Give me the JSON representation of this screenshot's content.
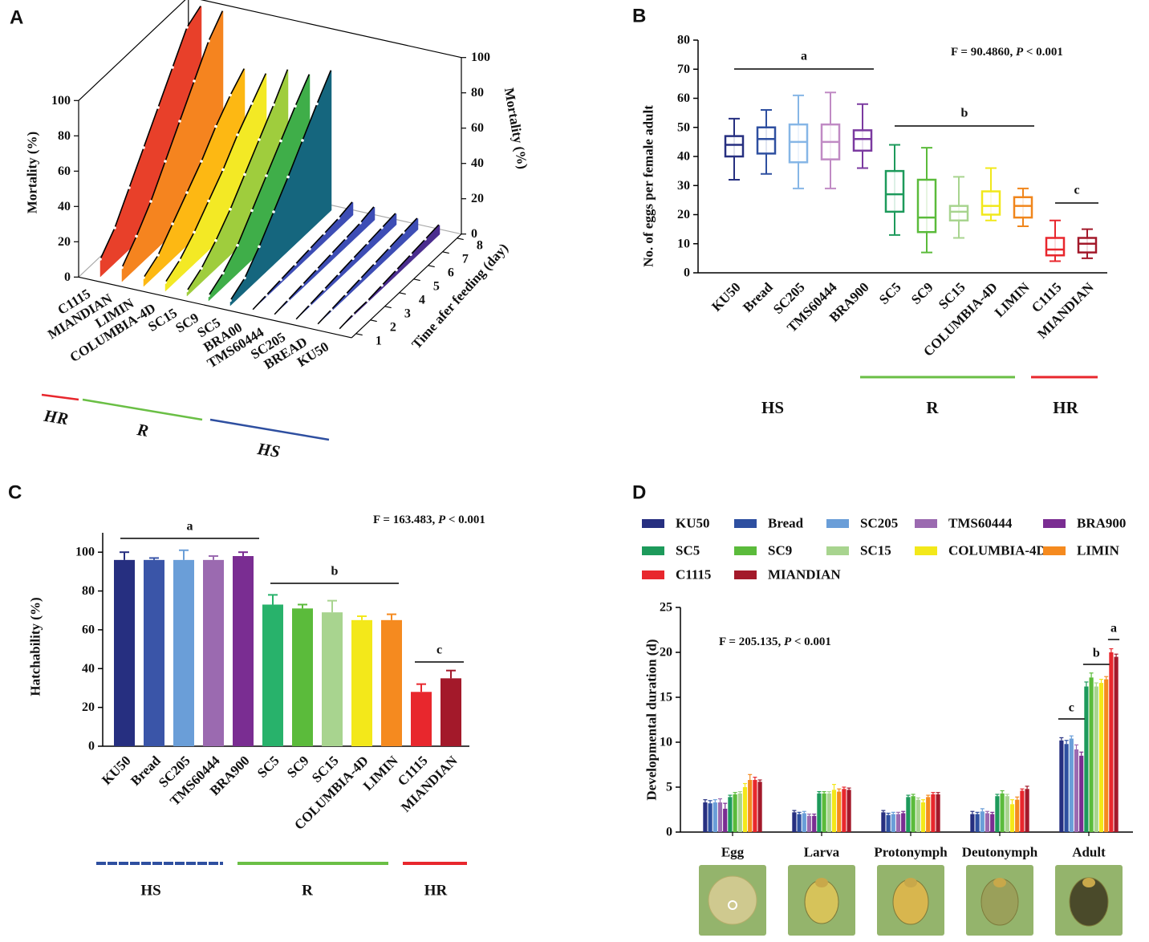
{
  "chart_data": [
    {
      "panel_label": "A",
      "type": "ribbon3d",
      "zlabel": "Mortality (%)",
      "xlabel": "Time afer feeding (day)",
      "x": [
        1,
        2,
        3,
        4,
        5,
        6,
        7,
        8
      ],
      "xticks": [
        1,
        2,
        3,
        4,
        5,
        6,
        7,
        8
      ],
      "zlim": [
        0,
        100
      ],
      "zticks": [
        0,
        20,
        40,
        60,
        80,
        100
      ],
      "series": [
        {
          "name": "C1115",
          "color": "#e8402a",
          "values": [
            10,
            20,
            35,
            50,
            65,
            80,
            95,
            100
          ]
        },
        {
          "name": "MIANDIAN",
          "color": "#f5841f",
          "values": [
            8,
            18,
            30,
            45,
            60,
            75,
            90,
            100
          ]
        },
        {
          "name": "LIMIN",
          "color": "#fdb813",
          "values": [
            5,
            10,
            20,
            30,
            40,
            52,
            62,
            70
          ]
        },
        {
          "name": "COLUMBIA-4D",
          "color": "#f3e925",
          "values": [
            5,
            10,
            18,
            28,
            38,
            50,
            60,
            70
          ]
        },
        {
          "name": "SC15",
          "color": "#9fcd3d",
          "values": [
            3,
            8,
            16,
            26,
            38,
            50,
            62,
            75
          ]
        },
        {
          "name": "SC9",
          "color": "#3fae49",
          "values": [
            3,
            8,
            16,
            28,
            40,
            52,
            64,
            75
          ]
        },
        {
          "name": "SC5",
          "color": "#15667e",
          "values": [
            3,
            8,
            18,
            30,
            42,
            55,
            68,
            80
          ]
        },
        {
          "name": "BRA00",
          "color": "#3d4db5",
          "values": [
            0,
            1,
            2,
            3,
            4,
            5,
            6,
            8
          ]
        },
        {
          "name": "TMS60444",
          "color": "#3d4db5",
          "values": [
            0,
            1,
            2,
            3,
            4,
            5,
            6,
            8
          ]
        },
        {
          "name": "SC205",
          "color": "#3d4db5",
          "values": [
            0,
            1,
            2,
            3,
            4,
            5,
            6,
            7
          ]
        },
        {
          "name": "BREAD",
          "color": "#3d4db5",
          "values": [
            0,
            1,
            2,
            3,
            4,
            5,
            6,
            7
          ]
        },
        {
          "name": "KU50",
          "color": "#4b2d8f",
          "values": [
            0,
            1,
            1,
            2,
            3,
            4,
            5,
            6
          ]
        }
      ],
      "groups": [
        {
          "name": "HR",
          "color": "#e8272d"
        },
        {
          "name": "R",
          "color": "#6abf45"
        },
        {
          "name": "HS",
          "color": "#2e4fa0"
        }
      ]
    },
    {
      "panel_label": "B",
      "type": "box",
      "ylabel": "No. of eggs per female adult",
      "stat": [
        "F = 90.4860, ",
        "P",
        " < 0.001"
      ],
      "categories": [
        "KU50",
        "Bread",
        "SC205",
        "TMS60444",
        "BRA900",
        "SC5",
        "SC9",
        "SC15",
        "COLUMBIA-4D",
        "LIMIN",
        "C1115",
        "MIANDIAN"
      ],
      "colors": [
        "#262f80",
        "#2e4fa0",
        "#86b6e6",
        "#c08ac4",
        "#7b3aa0",
        "#1d9a5b",
        "#5bbb3b",
        "#a8d48f",
        "#f1e81a",
        "#f0861c",
        "#e8272d",
        "#a3192a"
      ],
      "min": [
        32,
        34,
        29,
        29,
        36,
        13,
        7,
        12,
        18,
        16,
        4,
        5
      ],
      "q1": [
        40,
        41,
        38,
        39,
        42,
        21,
        14,
        18,
        20,
        19,
        6,
        7
      ],
      "median": [
        44,
        46,
        45,
        45,
        46,
        27,
        19,
        21,
        23,
        23,
        8,
        10
      ],
      "q3": [
        47,
        50,
        51,
        51,
        49,
        35,
        32,
        23,
        28,
        26,
        12,
        12
      ],
      "max": [
        53,
        56,
        61,
        62,
        58,
        44,
        43,
        33,
        36,
        29,
        18,
        15
      ],
      "ylim": [
        0,
        80
      ],
      "yticks": [
        0,
        10,
        20,
        30,
        40,
        50,
        60,
        70,
        80
      ],
      "letters": [
        "a",
        "b",
        "c"
      ],
      "groups": [
        {
          "name": "HS",
          "color": "#2e4fa0"
        },
        {
          "name": "R",
          "color": "#6abf45"
        },
        {
          "name": "HR",
          "color": "#e8272d"
        }
      ]
    },
    {
      "panel_label": "C",
      "type": "bar",
      "ylabel": "Hatchability (%)",
      "stat": [
        "F = 163.483, ",
        "P",
        " < 0.001"
      ],
      "categories": [
        "KU50",
        "Bread",
        "SC205",
        "TMS60444",
        "BRA900",
        "SC5",
        "SC9",
        "SC15",
        "COLUMBIA-4D",
        "LIMIN",
        "C1115",
        "MIANDIAN"
      ],
      "colors": [
        "#262f80",
        "#3a55a8",
        "#6a9ed8",
        "#9b6ab0",
        "#7a2d92",
        "#28b26b",
        "#5bbb3b",
        "#a8d48f",
        "#f3e81a",
        "#f58a1f",
        "#e8272d",
        "#a3192a"
      ],
      "values": [
        96,
        96,
        96,
        96,
        98,
        73,
        71,
        69,
        65,
        65,
        28,
        35
      ],
      "errors": [
        4,
        1,
        5,
        2,
        2,
        5,
        2,
        6,
        2,
        3,
        4,
        4
      ],
      "ylim": [
        0,
        110
      ],
      "yticks": [
        0,
        20,
        40,
        60,
        80,
        100
      ],
      "letters": [
        "a",
        "b",
        "c"
      ],
      "groups": [
        {
          "name": "HS",
          "color": "#2e4fa0"
        },
        {
          "name": "R",
          "color": "#6abf45"
        },
        {
          "name": "HR",
          "color": "#e8272d"
        }
      ]
    },
    {
      "panel_label": "D",
      "type": "grouped_bar",
      "ylabel": "Developmental duration (d)",
      "stat": [
        "F = 205.135, ",
        "P",
        " < 0.001"
      ],
      "categories": [
        "Egg",
        "Larva",
        "Protonymph",
        "Deutonymph",
        "Adult"
      ],
      "series": [
        {
          "name": "KU50",
          "color": "#262f80",
          "values": [
            3.3,
            2.2,
            2.2,
            2.0,
            10.2
          ],
          "errors": [
            0.3,
            0.2,
            0.2,
            0.3,
            0.3
          ]
        },
        {
          "name": "Bread",
          "color": "#2e4fa0",
          "values": [
            3.2,
            2.0,
            1.9,
            2.0,
            9.8
          ],
          "errors": [
            0.3,
            0.2,
            0.2,
            0.2,
            0.4
          ]
        },
        {
          "name": "SC205",
          "color": "#6a9ed8",
          "values": [
            3.3,
            2.1,
            2.0,
            2.3,
            10.4
          ],
          "errors": [
            0.3,
            0.2,
            0.2,
            0.3,
            0.3
          ]
        },
        {
          "name": "TMS60444",
          "color": "#9b6ab0",
          "values": [
            3.3,
            1.8,
            2.0,
            2.1,
            9.2
          ],
          "errors": [
            0.4,
            0.2,
            0.2,
            0.2,
            0.5
          ]
        },
        {
          "name": "BRA900",
          "color": "#7a2d92",
          "values": [
            2.6,
            1.8,
            2.1,
            2.0,
            8.5
          ],
          "errors": [
            0.6,
            0.2,
            0.2,
            0.2,
            0.4
          ]
        },
        {
          "name": "SC5",
          "color": "#1d9a5b",
          "values": [
            3.9,
            4.3,
            3.9,
            4.0,
            16.2
          ],
          "errors": [
            0.2,
            0.2,
            0.2,
            0.2,
            0.5
          ]
        },
        {
          "name": "SC9",
          "color": "#5bbb3b",
          "values": [
            4.2,
            4.3,
            4.0,
            4.3,
            17.2
          ],
          "errors": [
            0.2,
            0.2,
            0.2,
            0.3,
            0.5
          ]
        },
        {
          "name": "SC15",
          "color": "#a8d48f",
          "values": [
            4.3,
            4.3,
            3.6,
            4.0,
            16.2
          ],
          "errors": [
            0.2,
            0.2,
            0.2,
            0.2,
            0.4
          ]
        },
        {
          "name": "COLUMBIA-4D",
          "color": "#f3e81a",
          "values": [
            5.0,
            4.7,
            3.3,
            3.1,
            16.6
          ],
          "errors": [
            0.4,
            0.6,
            0.3,
            0.5,
            0.4
          ]
        },
        {
          "name": "LIMIN",
          "color": "#f58a1f",
          "values": [
            5.8,
            4.5,
            3.9,
            3.6,
            17.0
          ],
          "errors": [
            0.6,
            0.3,
            0.2,
            0.3,
            0.3
          ]
        },
        {
          "name": "C1115",
          "color": "#e8272d",
          "values": [
            5.8,
            4.8,
            4.2,
            4.6,
            20.0
          ],
          "errors": [
            0.3,
            0.2,
            0.2,
            0.2,
            0.4
          ]
        },
        {
          "name": "MIANDIAN",
          "color": "#a3192a",
          "values": [
            5.6,
            4.7,
            4.2,
            4.8,
            19.5
          ],
          "errors": [
            0.2,
            0.2,
            0.2,
            0.3,
            0.3
          ]
        }
      ],
      "ylim": [
        0,
        25
      ],
      "yticks": [
        0,
        5,
        10,
        15,
        20,
        25
      ],
      "letters": [
        "c",
        "b",
        "a"
      ]
    }
  ]
}
